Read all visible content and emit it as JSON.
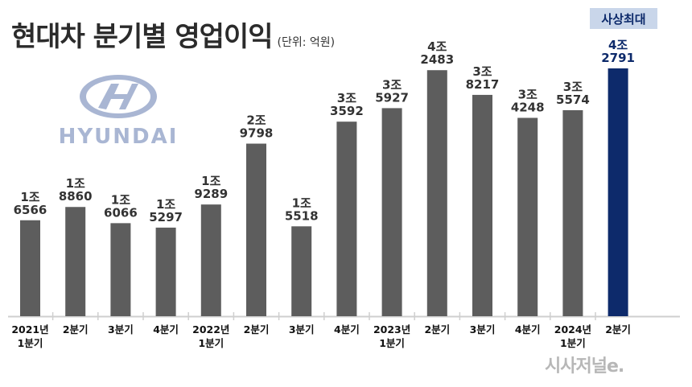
{
  "header": {
    "title": "현대차 분기별 영업이익",
    "unit": "(단위: 억원)"
  },
  "badge": {
    "label": "사상최대"
  },
  "logo": {
    "text": "HYUNDAI",
    "color": "#a9b6d3"
  },
  "watermark": {
    "text": "시사저널e."
  },
  "colors": {
    "bar": "#5d5d5d",
    "highlight": "#0d2a6b",
    "axis": "#cfcfcf"
  },
  "chart_data": {
    "type": "bar",
    "title": "현대차 분기별 영업이익",
    "ylabel": "",
    "xlabel": "",
    "unit": "(단위: 억원)",
    "ylim": [
      0,
      45000
    ],
    "categories": [
      [
        "2021년",
        "1분기"
      ],
      [
        "2분기"
      ],
      [
        "3분기"
      ],
      [
        "4분기"
      ],
      [
        "2022년",
        "1분기"
      ],
      [
        "2분기"
      ],
      [
        "3분기"
      ],
      [
        "4분기"
      ],
      [
        "2023년",
        "1분기"
      ],
      [
        "2분기"
      ],
      [
        "3분기"
      ],
      [
        "4분기"
      ],
      [
        "2024년",
        "1분기"
      ],
      [
        "2분기"
      ]
    ],
    "values": [
      16566,
      18860,
      16066,
      15297,
      19289,
      29798,
      15518,
      33592,
      35927,
      42483,
      38217,
      34248,
      35574,
      42791
    ],
    "value_labels": [
      [
        "1조",
        "6566"
      ],
      [
        "1조",
        "8860"
      ],
      [
        "1조",
        "6066"
      ],
      [
        "1조",
        "5297"
      ],
      [
        "1조",
        "9289"
      ],
      [
        "2조",
        "9798"
      ],
      [
        "1조",
        "5518"
      ],
      [
        "3조",
        "3592"
      ],
      [
        "3조",
        "5927"
      ],
      [
        "4조",
        "2483"
      ],
      [
        "3조",
        "8217"
      ],
      [
        "3조",
        "4248"
      ],
      [
        "3조",
        "5574"
      ],
      [
        "4조",
        "2791"
      ]
    ],
    "highlight_index": 13,
    "grid": false,
    "legend": "none"
  }
}
